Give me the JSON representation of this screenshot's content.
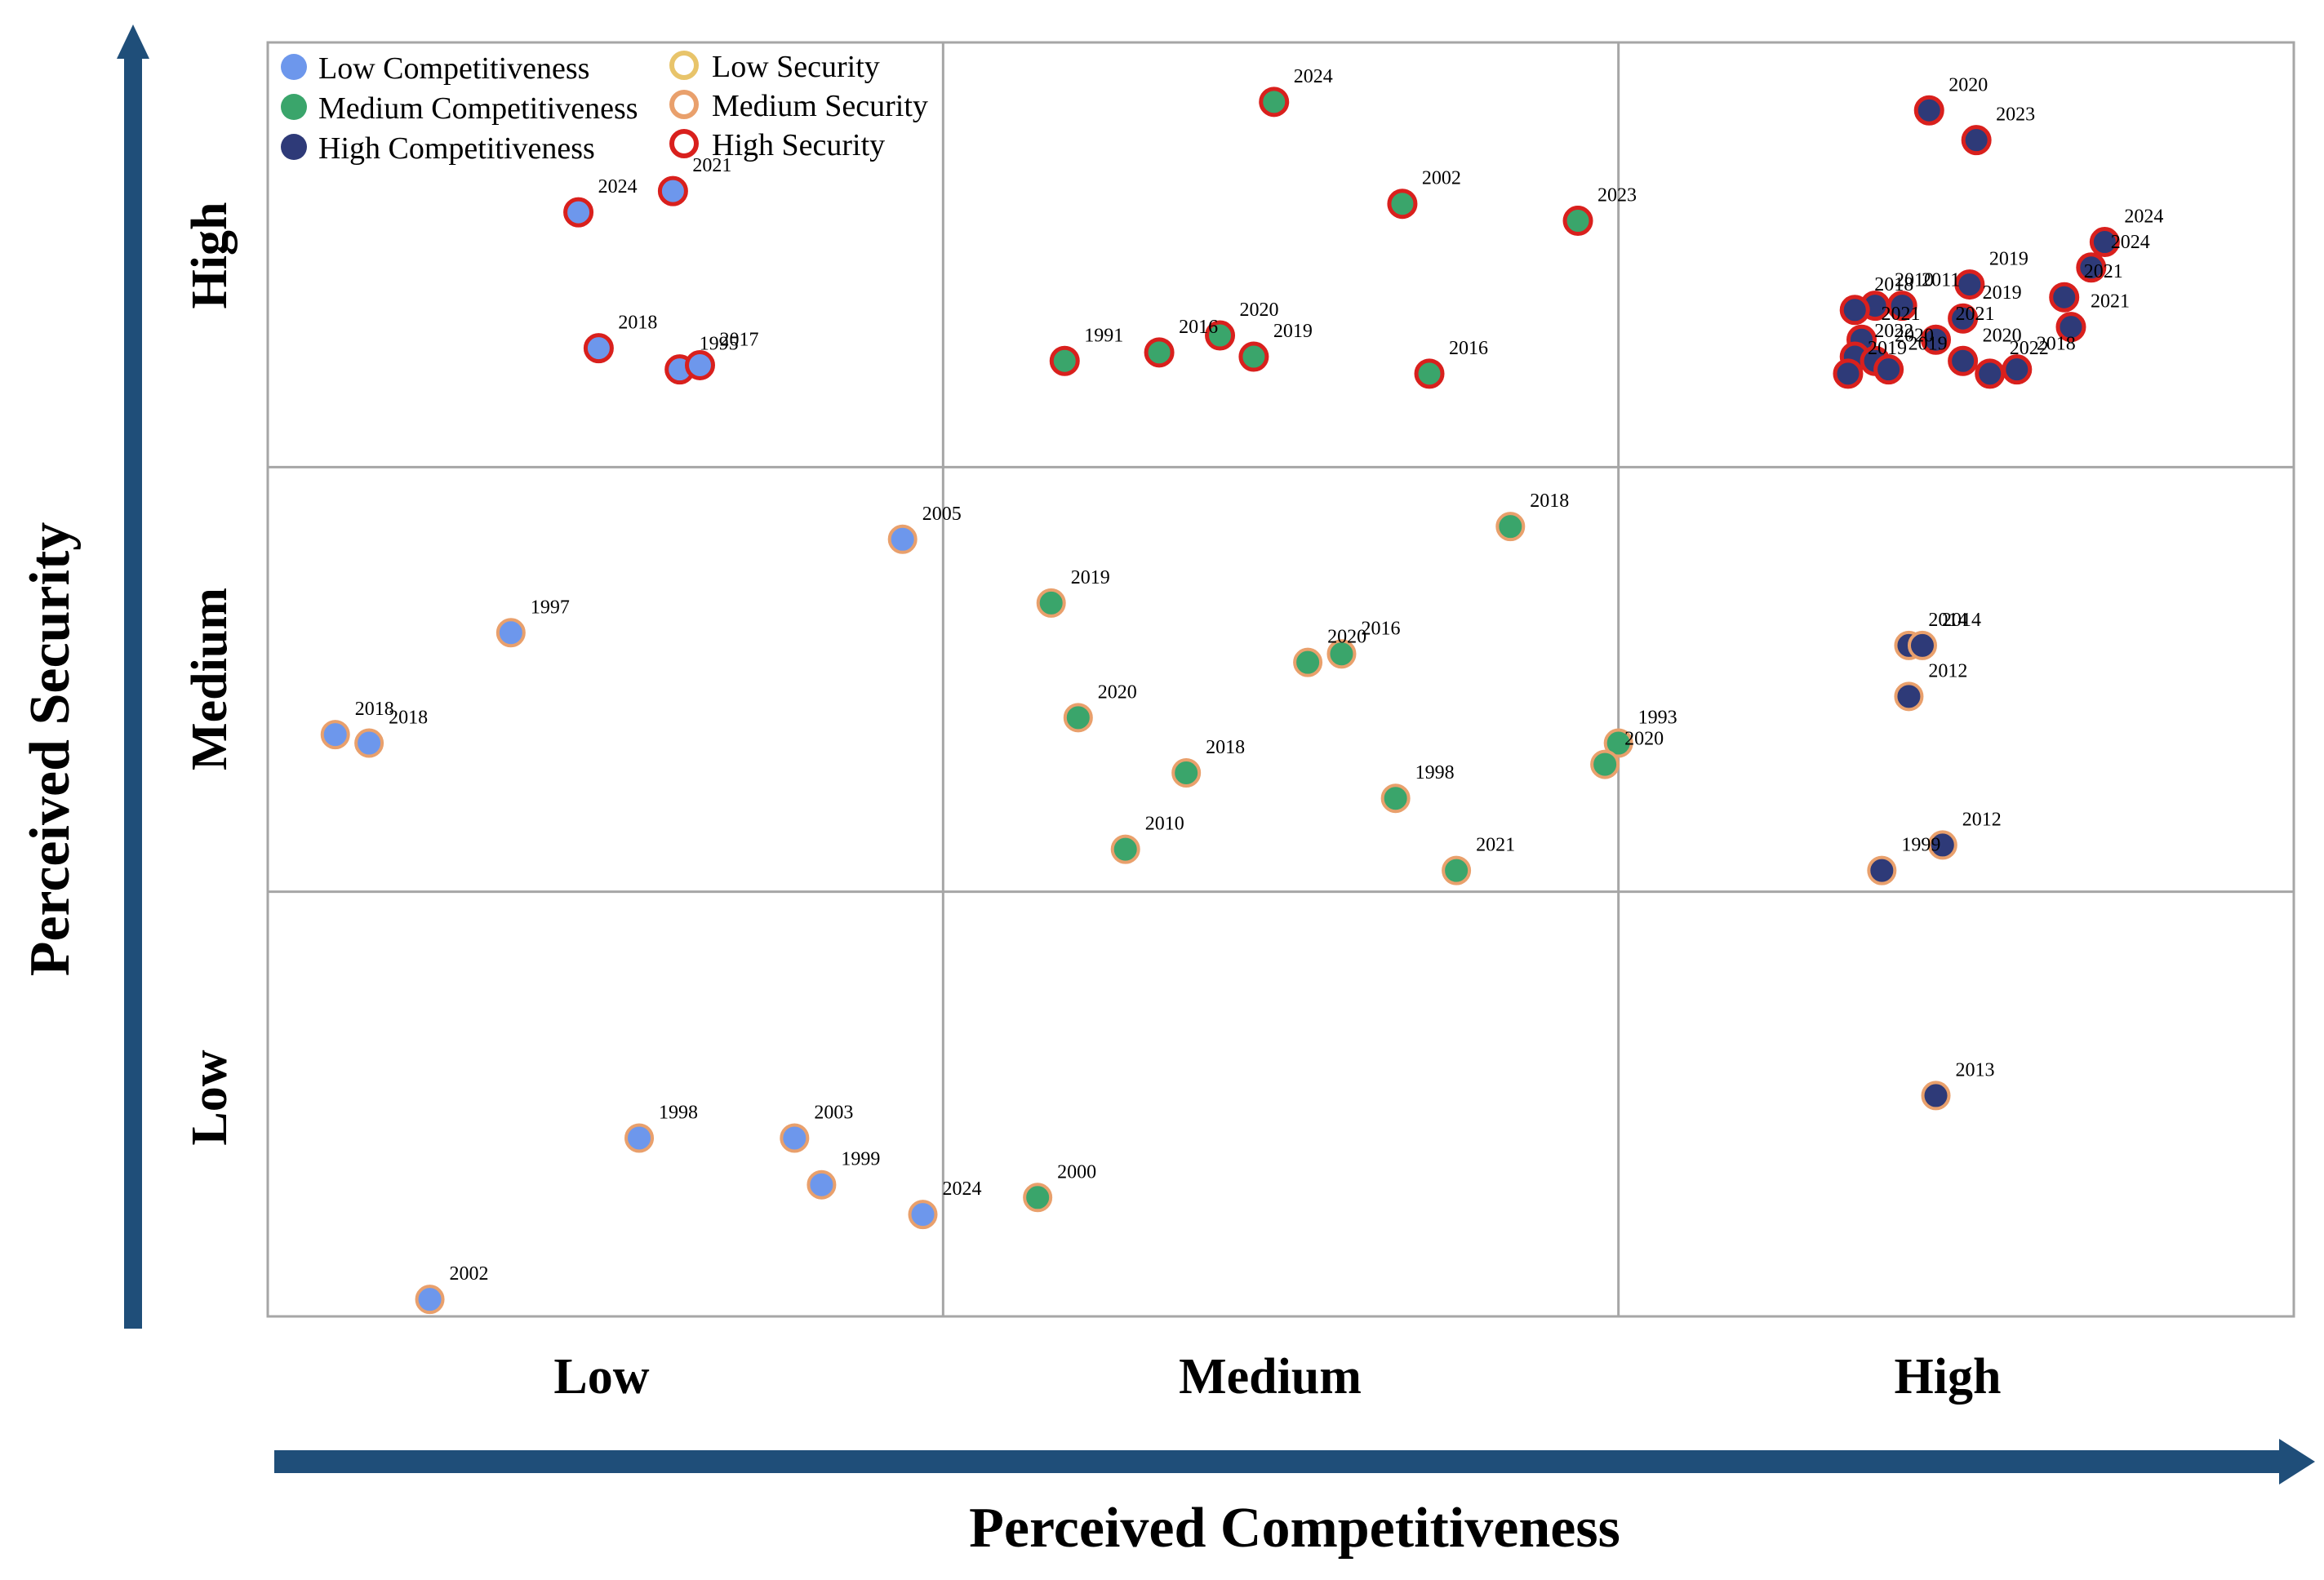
{
  "chart_data": {
    "type": "scatter",
    "title": "",
    "xlabel": "Perceived Competitiveness",
    "ylabel": "Perceived Security",
    "x_tick_labels": [
      "Low",
      "Medium",
      "High"
    ],
    "y_tick_labels": [
      "Low",
      "Medium",
      "High"
    ],
    "xlim": [
      0,
      3
    ],
    "ylim": [
      0,
      3
    ],
    "grid": true,
    "legend": {
      "position": "top-left",
      "competitiveness": [
        {
          "label": "Low Competitiveness",
          "color": "#6d97ec"
        },
        {
          "label": "Medium Competitiveness",
          "color": "#3aa56b"
        },
        {
          "label": "High Competitiveness",
          "color": "#2e3a78"
        }
      ],
      "security": [
        {
          "label": "Low Security",
          "color": "#e8c46a"
        },
        {
          "label": "Medium Security",
          "color": "#e9a06c"
        },
        {
          "label": "High Security",
          "color": "#d9201d"
        }
      ]
    },
    "colors": {
      "comp": {
        "low": "#6d97ec",
        "medium": "#3aa56b",
        "high": "#2e3a78"
      },
      "sec": {
        "low": "#e8c46a",
        "medium": "#e9a06c",
        "high": "#d9201d"
      },
      "arrow": "#1f4e79",
      "grid": "#a6a6a6"
    },
    "points": [
      {
        "x": 0.46,
        "y": 2.6,
        "label": "2024",
        "comp": "low",
        "sec": "high"
      },
      {
        "x": 0.6,
        "y": 2.65,
        "label": "2021",
        "comp": "low",
        "sec": "high"
      },
      {
        "x": 0.49,
        "y": 2.28,
        "label": "2018",
        "comp": "low",
        "sec": "high"
      },
      {
        "x": 0.61,
        "y": 2.23,
        "label": "1995",
        "comp": "low",
        "sec": "high"
      },
      {
        "x": 0.64,
        "y": 2.24,
        "label": "2017",
        "comp": "low",
        "sec": "high"
      },
      {
        "x": 1.49,
        "y": 2.86,
        "label": "2024",
        "comp": "medium",
        "sec": "high"
      },
      {
        "x": 1.68,
        "y": 2.62,
        "label": "2002",
        "comp": "medium",
        "sec": "high"
      },
      {
        "x": 1.94,
        "y": 2.58,
        "label": "2023",
        "comp": "medium",
        "sec": "high"
      },
      {
        "x": 1.18,
        "y": 2.25,
        "label": "1991",
        "comp": "medium",
        "sec": "high"
      },
      {
        "x": 1.32,
        "y": 2.27,
        "label": "2016",
        "comp": "medium",
        "sec": "high"
      },
      {
        "x": 1.41,
        "y": 2.31,
        "label": "2020",
        "comp": "medium",
        "sec": "high"
      },
      {
        "x": 1.46,
        "y": 2.26,
        "label": "2019",
        "comp": "medium",
        "sec": "high"
      },
      {
        "x": 1.72,
        "y": 2.22,
        "label": "2016",
        "comp": "medium",
        "sec": "high"
      },
      {
        "x": 2.46,
        "y": 2.84,
        "label": "2020",
        "comp": "high",
        "sec": "high"
      },
      {
        "x": 2.53,
        "y": 2.77,
        "label": "2023",
        "comp": "high",
        "sec": "high"
      },
      {
        "x": 2.72,
        "y": 2.53,
        "label": "2024",
        "comp": "high",
        "sec": "high"
      },
      {
        "x": 2.7,
        "y": 2.47,
        "label": "2024",
        "comp": "high",
        "sec": "high"
      },
      {
        "x": 2.66,
        "y": 2.4,
        "label": "2021",
        "comp": "high",
        "sec": "high"
      },
      {
        "x": 2.67,
        "y": 2.33,
        "label": "2021",
        "comp": "high",
        "sec": "high"
      },
      {
        "x": 2.52,
        "y": 2.43,
        "label": "2019",
        "comp": "high",
        "sec": "high"
      },
      {
        "x": 2.51,
        "y": 2.35,
        "label": "2019",
        "comp": "high",
        "sec": "high"
      },
      {
        "x": 2.47,
        "y": 2.3,
        "label": "2021",
        "comp": "high",
        "sec": "high"
      },
      {
        "x": 2.38,
        "y": 2.38,
        "label": "2010",
        "comp": "high",
        "sec": "high"
      },
      {
        "x": 2.35,
        "y": 2.37,
        "label": "2018",
        "comp": "high",
        "sec": "high"
      },
      {
        "x": 2.42,
        "y": 2.38,
        "label": "2011",
        "comp": "high",
        "sec": "high"
      },
      {
        "x": 2.36,
        "y": 2.3,
        "label": "2021",
        "comp": "high",
        "sec": "high"
      },
      {
        "x": 2.35,
        "y": 2.26,
        "label": "2022",
        "comp": "high",
        "sec": "high"
      },
      {
        "x": 2.38,
        "y": 2.25,
        "label": "2020",
        "comp": "high",
        "sec": "high"
      },
      {
        "x": 2.4,
        "y": 2.23,
        "label": "2019",
        "comp": "high",
        "sec": "high"
      },
      {
        "x": 2.34,
        "y": 2.22,
        "label": "2019",
        "comp": "high",
        "sec": "high"
      },
      {
        "x": 2.51,
        "y": 2.25,
        "label": "2020",
        "comp": "high",
        "sec": "high"
      },
      {
        "x": 2.55,
        "y": 2.22,
        "label": "2022",
        "comp": "high",
        "sec": "high"
      },
      {
        "x": 2.59,
        "y": 2.23,
        "label": "2018",
        "comp": "high",
        "sec": "high"
      },
      {
        "x": 0.94,
        "y": 1.83,
        "label": "2005",
        "comp": "low",
        "sec": "medium"
      },
      {
        "x": 0.36,
        "y": 1.61,
        "label": "1997",
        "comp": "low",
        "sec": "medium"
      },
      {
        "x": 0.1,
        "y": 1.37,
        "label": "2018",
        "comp": "low",
        "sec": "medium"
      },
      {
        "x": 0.15,
        "y": 1.35,
        "label": "2018",
        "comp": "low",
        "sec": "medium"
      },
      {
        "x": 1.84,
        "y": 1.86,
        "label": "2018",
        "comp": "medium",
        "sec": "medium"
      },
      {
        "x": 1.16,
        "y": 1.68,
        "label": "2019",
        "comp": "medium",
        "sec": "medium"
      },
      {
        "x": 1.54,
        "y": 1.54,
        "label": "2020",
        "comp": "medium",
        "sec": "medium"
      },
      {
        "x": 1.59,
        "y": 1.56,
        "label": "2016",
        "comp": "medium",
        "sec": "medium"
      },
      {
        "x": 1.2,
        "y": 1.41,
        "label": "2020",
        "comp": "medium",
        "sec": "medium"
      },
      {
        "x": 1.36,
        "y": 1.28,
        "label": "2018",
        "comp": "medium",
        "sec": "medium"
      },
      {
        "x": 1.27,
        "y": 1.1,
        "label": "2010",
        "comp": "medium",
        "sec": "medium"
      },
      {
        "x": 1.67,
        "y": 1.22,
        "label": "1998",
        "comp": "medium",
        "sec": "medium"
      },
      {
        "x": 1.76,
        "y": 1.05,
        "label": "2021",
        "comp": "medium",
        "sec": "medium"
      },
      {
        "x": 2.0,
        "y": 1.35,
        "label": "1993",
        "comp": "medium",
        "sec": "medium"
      },
      {
        "x": 1.98,
        "y": 1.3,
        "label": "2020",
        "comp": "medium",
        "sec": "medium"
      },
      {
        "x": 2.43,
        "y": 1.58,
        "label": "2014",
        "comp": "high",
        "sec": "medium"
      },
      {
        "x": 2.45,
        "y": 1.58,
        "label": "2014",
        "comp": "high",
        "sec": "medium"
      },
      {
        "x": 2.43,
        "y": 1.46,
        "label": "2012",
        "comp": "high",
        "sec": "medium"
      },
      {
        "x": 2.48,
        "y": 1.11,
        "label": "2012",
        "comp": "high",
        "sec": "medium"
      },
      {
        "x": 2.39,
        "y": 1.05,
        "label": "1999",
        "comp": "high",
        "sec": "medium"
      },
      {
        "x": 0.55,
        "y": 0.42,
        "label": "1998",
        "comp": "low",
        "sec": "medium"
      },
      {
        "x": 0.78,
        "y": 0.42,
        "label": "2003",
        "comp": "low",
        "sec": "medium"
      },
      {
        "x": 0.82,
        "y": 0.31,
        "label": "1999",
        "comp": "low",
        "sec": "medium"
      },
      {
        "x": 0.97,
        "y": 0.24,
        "label": "2024",
        "comp": "low",
        "sec": "medium"
      },
      {
        "x": 0.24,
        "y": 0.04,
        "label": "2002",
        "comp": "low",
        "sec": "medium"
      },
      {
        "x": 1.14,
        "y": 0.28,
        "label": "2000",
        "comp": "medium",
        "sec": "medium"
      },
      {
        "x": 2.47,
        "y": 0.52,
        "label": "2013",
        "comp": "high",
        "sec": "medium"
      }
    ]
  }
}
